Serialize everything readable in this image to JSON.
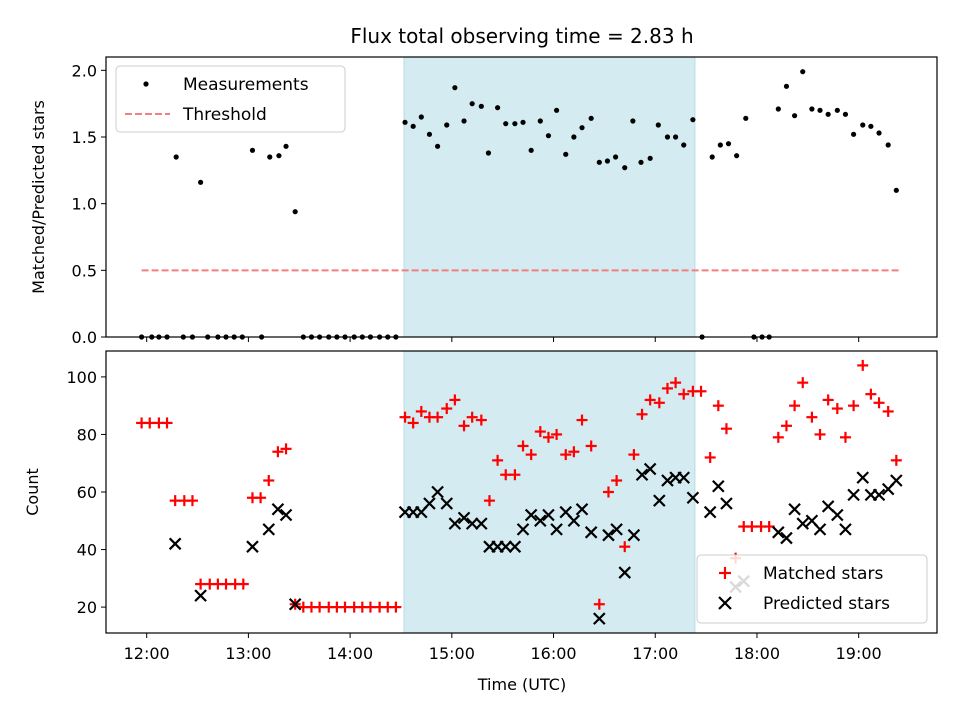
{
  "chart_data": {
    "title": "Flux total observing time = 2.83 h",
    "xlabel": "Time (UTC)",
    "x_ticks": [
      "12:00",
      "13:00",
      "14:00",
      "15:00",
      "16:00",
      "17:00",
      "18:00",
      "19:00"
    ],
    "xlim": [
      11.6,
      19.77
    ],
    "shaded_span": [
      14.53,
      17.39
    ],
    "colors": {
      "shade": "#d4ebf1",
      "threshold": "#f47f7f",
      "matched": "#ff0000",
      "predicted": "#000000",
      "measurements": "#000000"
    },
    "top": {
      "type": "scatter",
      "ylabel": "Matched/Predicted stars",
      "ylim": [
        0,
        2.1
      ],
      "y_ticks": [
        "0.0",
        "0.5",
        "1.0",
        "1.5",
        "2.0"
      ],
      "legend": {
        "placement": "top-left",
        "entries": [
          "Measurements",
          "Threshold"
        ]
      },
      "threshold": {
        "value": 0.5,
        "x": [
          11.95,
          19.4
        ]
      },
      "measurements": [
        [
          11.95,
          0
        ],
        [
          12.05,
          0
        ],
        [
          12.12,
          0
        ],
        [
          12.2,
          0
        ],
        [
          12.29,
          1.35
        ],
        [
          12.36,
          0
        ],
        [
          12.45,
          0
        ],
        [
          12.53,
          1.16
        ],
        [
          12.6,
          0
        ],
        [
          12.7,
          0
        ],
        [
          12.78,
          0
        ],
        [
          12.86,
          0
        ],
        [
          12.94,
          0
        ],
        [
          13.04,
          1.4
        ],
        [
          13.13,
          0
        ],
        [
          13.21,
          1.35
        ],
        [
          13.3,
          1.36
        ],
        [
          13.37,
          1.43
        ],
        [
          13.46,
          0.94
        ],
        [
          13.54,
          0
        ],
        [
          13.62,
          0
        ],
        [
          13.7,
          0
        ],
        [
          13.79,
          0
        ],
        [
          13.87,
          0
        ],
        [
          13.95,
          0
        ],
        [
          14.04,
          0
        ],
        [
          14.12,
          0
        ],
        [
          14.2,
          0
        ],
        [
          14.29,
          0
        ],
        [
          14.37,
          0
        ],
        [
          14.45,
          0
        ],
        [
          14.54,
          1.61
        ],
        [
          14.62,
          1.58
        ],
        [
          14.7,
          1.65
        ],
        [
          14.78,
          1.52
        ],
        [
          14.86,
          1.43
        ],
        [
          14.95,
          1.59
        ],
        [
          15.03,
          1.87
        ],
        [
          15.12,
          1.62
        ],
        [
          15.2,
          1.75
        ],
        [
          15.29,
          1.73
        ],
        [
          15.36,
          1.38
        ],
        [
          15.45,
          1.72
        ],
        [
          15.53,
          1.6
        ],
        [
          15.62,
          1.6
        ],
        [
          15.7,
          1.61
        ],
        [
          15.78,
          1.4
        ],
        [
          15.87,
          1.62
        ],
        [
          15.95,
          1.51
        ],
        [
          16.03,
          1.7
        ],
        [
          16.12,
          1.37
        ],
        [
          16.2,
          1.5
        ],
        [
          16.28,
          1.57
        ],
        [
          16.37,
          1.64
        ],
        [
          16.45,
          1.31
        ],
        [
          16.53,
          1.32
        ],
        [
          16.61,
          1.35
        ],
        [
          16.7,
          1.27
        ],
        [
          16.78,
          1.62
        ],
        [
          16.86,
          1.31
        ],
        [
          16.95,
          1.34
        ],
        [
          17.03,
          1.59
        ],
        [
          17.12,
          1.5
        ],
        [
          17.2,
          1.5
        ],
        [
          17.28,
          1.44
        ],
        [
          17.37,
          1.63
        ],
        [
          17.46,
          0
        ],
        [
          17.56,
          1.35
        ],
        [
          17.64,
          1.44
        ],
        [
          17.72,
          1.45
        ],
        [
          17.8,
          1.36
        ],
        [
          17.89,
          1.64
        ],
        [
          17.97,
          0
        ],
        [
          18.05,
          0
        ],
        [
          18.12,
          0
        ],
        [
          18.21,
          1.71
        ],
        [
          18.29,
          1.88
        ],
        [
          18.37,
          1.66
        ],
        [
          18.45,
          1.99
        ],
        [
          18.54,
          1.71
        ],
        [
          18.62,
          1.7
        ],
        [
          18.7,
          1.67
        ],
        [
          18.79,
          1.7
        ],
        [
          18.87,
          1.67
        ],
        [
          18.95,
          1.52
        ],
        [
          19.04,
          1.59
        ],
        [
          19.12,
          1.58
        ],
        [
          19.2,
          1.53
        ],
        [
          19.29,
          1.44
        ],
        [
          19.37,
          1.1
        ]
      ]
    },
    "bottom": {
      "type": "scatter",
      "ylabel": "Count",
      "ylim": [
        11,
        109
      ],
      "y_ticks": [
        "20",
        "40",
        "60",
        "80",
        "100"
      ],
      "legend": {
        "placement": "lower-right",
        "entries": [
          "Matched stars",
          "Predicted stars"
        ]
      },
      "matched": [
        [
          11.95,
          84
        ],
        [
          12.03,
          84
        ],
        [
          12.12,
          84
        ],
        [
          12.2,
          84
        ],
        [
          12.28,
          57
        ],
        [
          12.37,
          57
        ],
        [
          12.45,
          57
        ],
        [
          12.53,
          28
        ],
        [
          12.62,
          28
        ],
        [
          12.7,
          28
        ],
        [
          12.78,
          28
        ],
        [
          12.87,
          28
        ],
        [
          12.95,
          28
        ],
        [
          13.04,
          58
        ],
        [
          13.12,
          58
        ],
        [
          13.2,
          64
        ],
        [
          13.29,
          74
        ],
        [
          13.37,
          75
        ],
        [
          13.46,
          21
        ],
        [
          13.54,
          20
        ],
        [
          13.62,
          20
        ],
        [
          13.7,
          20
        ],
        [
          13.79,
          20
        ],
        [
          13.87,
          20
        ],
        [
          13.95,
          20
        ],
        [
          14.04,
          20
        ],
        [
          14.12,
          20
        ],
        [
          14.2,
          20
        ],
        [
          14.29,
          20
        ],
        [
          14.37,
          20
        ],
        [
          14.45,
          20
        ],
        [
          14.54,
          86
        ],
        [
          14.62,
          84
        ],
        [
          14.7,
          88
        ],
        [
          14.78,
          86
        ],
        [
          14.86,
          86
        ],
        [
          14.95,
          89
        ],
        [
          15.03,
          92
        ],
        [
          15.12,
          83
        ],
        [
          15.2,
          86
        ],
        [
          15.29,
          85
        ],
        [
          15.37,
          57
        ],
        [
          15.45,
          71
        ],
        [
          15.53,
          66
        ],
        [
          15.62,
          66
        ],
        [
          15.7,
          76
        ],
        [
          15.78,
          73
        ],
        [
          15.87,
          81
        ],
        [
          15.95,
          79
        ],
        [
          16.03,
          80
        ],
        [
          16.12,
          73
        ],
        [
          16.2,
          74
        ],
        [
          16.28,
          85
        ],
        [
          16.37,
          76
        ],
        [
          16.45,
          21
        ],
        [
          16.54,
          60
        ],
        [
          16.62,
          64
        ],
        [
          16.7,
          41
        ],
        [
          16.79,
          73
        ],
        [
          16.87,
          87
        ],
        [
          16.95,
          92
        ],
        [
          17.04,
          91
        ],
        [
          17.12,
          96
        ],
        [
          17.2,
          98
        ],
        [
          17.28,
          94
        ],
        [
          17.37,
          95
        ],
        [
          17.45,
          95
        ],
        [
          17.54,
          72
        ],
        [
          17.62,
          90
        ],
        [
          17.7,
          82
        ],
        [
          17.79,
          37
        ],
        [
          17.87,
          48
        ],
        [
          17.95,
          48
        ],
        [
          18.04,
          48
        ],
        [
          18.12,
          48
        ],
        [
          18.21,
          79
        ],
        [
          18.29,
          83
        ],
        [
          18.37,
          90
        ],
        [
          18.45,
          98
        ],
        [
          18.54,
          86
        ],
        [
          18.62,
          80
        ],
        [
          18.7,
          92
        ],
        [
          18.79,
          89
        ],
        [
          18.87,
          79
        ],
        [
          18.95,
          90
        ],
        [
          19.04,
          104
        ],
        [
          19.12,
          94
        ],
        [
          19.2,
          91
        ],
        [
          19.29,
          88
        ],
        [
          19.37,
          71
        ]
      ],
      "predicted": [
        [
          12.28,
          42
        ],
        [
          12.53,
          24
        ],
        [
          13.04,
          41
        ],
        [
          13.2,
          47
        ],
        [
          13.29,
          54
        ],
        [
          13.37,
          52
        ],
        [
          13.46,
          21
        ],
        [
          14.54,
          53
        ],
        [
          14.62,
          53
        ],
        [
          14.7,
          53
        ],
        [
          14.78,
          56
        ],
        [
          14.86,
          60
        ],
        [
          14.95,
          56
        ],
        [
          15.03,
          49
        ],
        [
          15.12,
          51
        ],
        [
          15.2,
          49
        ],
        [
          15.29,
          49
        ],
        [
          15.37,
          41
        ],
        [
          15.45,
          41
        ],
        [
          15.53,
          41
        ],
        [
          15.62,
          41
        ],
        [
          15.7,
          47
        ],
        [
          15.78,
          52
        ],
        [
          15.87,
          50
        ],
        [
          15.95,
          52
        ],
        [
          16.03,
          47
        ],
        [
          16.12,
          53
        ],
        [
          16.2,
          50
        ],
        [
          16.28,
          54
        ],
        [
          16.37,
          46
        ],
        [
          16.45,
          16
        ],
        [
          16.54,
          45
        ],
        [
          16.62,
          47
        ],
        [
          16.7,
          32
        ],
        [
          16.79,
          45
        ],
        [
          16.87,
          66
        ],
        [
          16.95,
          68
        ],
        [
          17.04,
          57
        ],
        [
          17.12,
          64
        ],
        [
          17.2,
          65
        ],
        [
          17.28,
          65
        ],
        [
          17.37,
          58
        ],
        [
          17.54,
          53
        ],
        [
          17.62,
          62
        ],
        [
          17.7,
          56
        ],
        [
          17.79,
          27
        ],
        [
          17.87,
          29
        ],
        [
          18.21,
          46
        ],
        [
          18.29,
          44
        ],
        [
          18.37,
          54
        ],
        [
          18.45,
          49
        ],
        [
          18.54,
          50
        ],
        [
          18.62,
          47
        ],
        [
          18.7,
          55
        ],
        [
          18.79,
          52
        ],
        [
          18.87,
          47
        ],
        [
          18.95,
          59
        ],
        [
          19.04,
          65
        ],
        [
          19.12,
          59
        ],
        [
          19.2,
          59
        ],
        [
          19.29,
          61
        ],
        [
          19.37,
          64
        ]
      ]
    }
  }
}
